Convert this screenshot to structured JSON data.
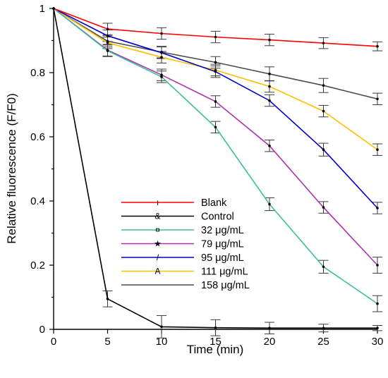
{
  "chart_data": {
    "type": "line",
    "xlabel": "Time (min)",
    "ylabel": "Relative fluorescence (F/F0)",
    "xlim": [
      0,
      30
    ],
    "ylim": [
      0,
      1
    ],
    "xticks": [
      0,
      5,
      10,
      15,
      20,
      25,
      30
    ],
    "yticks": [
      0,
      0.2,
      0.4,
      0.6,
      0.8,
      1
    ],
    "xtick_labels": [
      "0",
      "5",
      "10",
      "15",
      "20",
      "25",
      "30"
    ],
    "ytick_labels": [
      "0",
      "0.2",
      "0.4",
      "0.6",
      "0.8",
      "1"
    ],
    "x": [
      0,
      5,
      10,
      15,
      20,
      25,
      30
    ],
    "grid": false,
    "legend_position": "lower-left",
    "series": [
      {
        "name": "Blank",
        "color": "#ff0000",
        "marker": "ı",
        "values": [
          1.0,
          0.936,
          0.922,
          0.911,
          0.902,
          0.892,
          0.882
        ],
        "errors": [
          0.008,
          0.018,
          0.018,
          0.018,
          0.018,
          0.017,
          0.014
        ]
      },
      {
        "name": "Control",
        "color": "#000000",
        "marker": "&",
        "values": [
          1.0,
          0.095,
          0.008,
          0.005,
          0.004,
          0.004,
          0.004
        ],
        "errors": [
          0.008,
          0.025,
          0.035,
          0.025,
          0.018,
          0.012,
          0.008
        ]
      },
      {
        "name": "32 μg/mL",
        "color": "#3cbf9a",
        "marker": "¤",
        "values": [
          1.0,
          0.868,
          0.787,
          0.63,
          0.39,
          0.195,
          0.08
        ],
        "errors": [
          0.008,
          0.018,
          0.018,
          0.018,
          0.02,
          0.02,
          0.025
        ]
      },
      {
        "name": "79 μg/mL",
        "color": "#b030b0",
        "marker": "★",
        "values": [
          1.0,
          0.87,
          0.793,
          0.71,
          0.572,
          0.38,
          0.2
        ],
        "errors": [
          0.008,
          0.018,
          0.018,
          0.018,
          0.018,
          0.018,
          0.025
        ]
      },
      {
        "name": "95 μg/mL",
        "color": "#0000cc",
        "marker": "/",
        "values": [
          1.0,
          0.915,
          0.862,
          0.803,
          0.713,
          0.56,
          0.378
        ],
        "errors": [
          0.008,
          0.018,
          0.018,
          0.018,
          0.018,
          0.02,
          0.018
        ]
      },
      {
        "name": "111 μg/mL",
        "color": "#ffc000",
        "marker": "A",
        "values": [
          1.0,
          0.893,
          0.848,
          0.808,
          0.757,
          0.68,
          0.56
        ],
        "errors": [
          0.008,
          0.018,
          0.018,
          0.018,
          0.018,
          0.018,
          0.018
        ]
      },
      {
        "name": "158 μg/mL",
        "color": "#4d4d4d",
        "marker": "",
        "values": [
          1.0,
          0.898,
          0.864,
          0.832,
          0.796,
          0.76,
          0.718
        ],
        "errors": [
          0.008,
          0.018,
          0.018,
          0.018,
          0.022,
          0.022,
          0.018
        ]
      }
    ]
  }
}
